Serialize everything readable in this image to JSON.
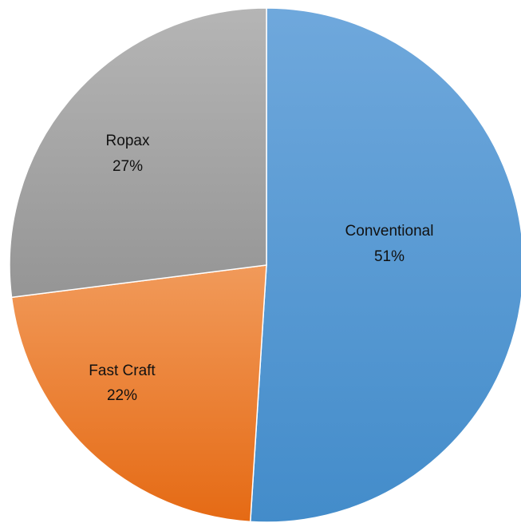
{
  "chart_data": {
    "type": "pie",
    "title": "",
    "slices": [
      {
        "label": "Conventional",
        "value": 51,
        "pct_label": "51%",
        "color": "#5B9BD5"
      },
      {
        "label": "Fast Craft",
        "value": 22,
        "pct_label": "22%",
        "color": "#ED7D31"
      },
      {
        "label": "Ropax",
        "value": 27,
        "pct_label": "27%",
        "color": "#A5A5A5"
      }
    ],
    "start": "12 o'clock, clockwise",
    "legend": "none",
    "data_labels": "category name and percentage inside slices"
  }
}
